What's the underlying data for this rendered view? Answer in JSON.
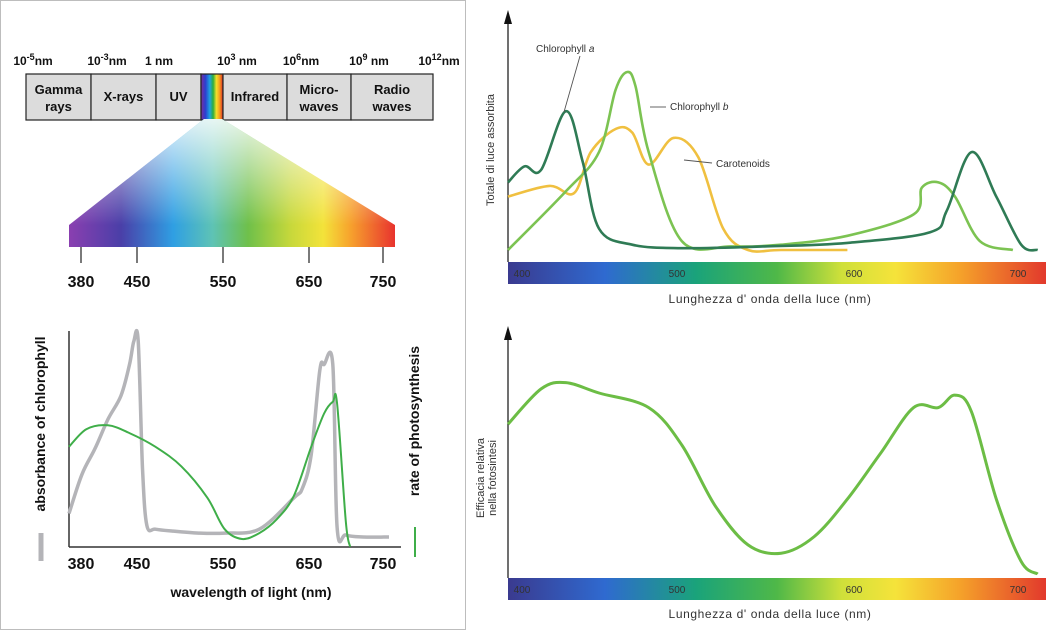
{
  "spectrum": {
    "scale_labels": [
      {
        "base": "10",
        "exp": "-5",
        "unit": "nm"
      },
      {
        "base": "10",
        "exp": "-3",
        "unit": "nm"
      },
      {
        "base": "1",
        "exp": "",
        "unit": " nm"
      },
      {
        "base": "10",
        "exp": "3",
        "unit": " nm"
      },
      {
        "base": "10",
        "exp": "6",
        "unit": "nm"
      },
      {
        "base": "10",
        "exp": "9",
        "unit": " nm"
      },
      {
        "base": "10",
        "exp": "12",
        "unit": "nm"
      }
    ],
    "bands": [
      {
        "lines": [
          "Gamma",
          "rays"
        ]
      },
      {
        "lines": [
          "X-rays"
        ]
      },
      {
        "lines": [
          "UV"
        ]
      },
      {
        "lines": []
      },
      {
        "lines": [
          "Infrared"
        ]
      },
      {
        "lines": [
          "Micro-",
          "waves"
        ]
      },
      {
        "lines": [
          "Radio",
          "waves"
        ]
      }
    ],
    "visible_ticks": [
      "380",
      "450",
      "550",
      "650",
      "750"
    ]
  },
  "chart_data": [
    {
      "type": "line",
      "xlabel": "wavelength of light (nm)",
      "ylabel": "absorbance of chlorophyll",
      "y2label": "rate of photosynthesis",
      "x_ticks": [
        "380",
        "450",
        "550",
        "650",
        "750"
      ],
      "xlim": [
        380,
        750
      ],
      "colors": {
        "absorbance": "#b4b4b8",
        "rate": "#3fae49"
      },
      "series": [
        {
          "name": "absorbance of chlorophyll",
          "x": [
            380,
            395,
            410,
            425,
            440,
            450,
            455,
            460,
            465,
            470,
            480,
            500,
            530,
            560,
            600,
            640,
            650,
            660,
            670,
            675,
            685,
            690,
            700,
            720,
            750
          ],
          "y": [
            0.12,
            0.32,
            0.45,
            0.6,
            0.72,
            0.88,
            1.0,
            1.0,
            0.35,
            0.06,
            0.04,
            0.03,
            0.02,
            0.02,
            0.04,
            0.2,
            0.25,
            0.42,
            0.85,
            0.88,
            0.88,
            0.05,
            0.01,
            0.0,
            0.0
          ]
        },
        {
          "name": "rate of photosynthesis",
          "x": [
            380,
            400,
            425,
            450,
            480,
            510,
            540,
            560,
            580,
            600,
            620,
            640,
            660,
            675,
            685,
            690,
            700,
            705
          ],
          "y": [
            0.46,
            0.55,
            0.57,
            0.53,
            0.46,
            0.36,
            0.2,
            0.04,
            -0.01,
            0.02,
            0.09,
            0.21,
            0.46,
            0.63,
            0.69,
            0.68,
            0.08,
            -0.05
          ]
        }
      ]
    },
    {
      "type": "line",
      "xlabel": "Lunghezza d' onda della luce (nm)",
      "ylabel": "Totale di luce assorbita",
      "x_ticks": [
        "400",
        "500",
        "600",
        "700"
      ],
      "xlim": [
        395,
        720
      ],
      "colors": {
        "Chlorophyll a": "#2f7b55",
        "Chlorophyll b": "#7cc352",
        "Carotenoids": "#f0c040"
      },
      "series": [
        {
          "name": "Chlorophyll a",
          "label_pre": "Chlorophyll ",
          "label_it": "a",
          "x": [
            395,
            405,
            415,
            430,
            440,
            450,
            470,
            500,
            550,
            600,
            650,
            660,
            675,
            690,
            705,
            715
          ],
          "y": [
            0.38,
            0.47,
            0.45,
            0.78,
            0.5,
            0.12,
            0.03,
            0.01,
            0.02,
            0.04,
            0.1,
            0.22,
            0.55,
            0.3,
            0.03,
            0.0
          ]
        },
        {
          "name": "Chlorophyll b",
          "label_pre": "Chlorophyll ",
          "label_it": "b",
          "x": [
            395,
            430,
            450,
            460,
            467,
            472,
            480,
            500,
            530,
            560,
            600,
            640,
            645,
            655,
            665,
            680,
            700
          ],
          "y": [
            0.0,
            0.33,
            0.55,
            0.9,
            1.0,
            0.92,
            0.55,
            0.05,
            0.02,
            0.03,
            0.08,
            0.2,
            0.35,
            0.38,
            0.3,
            0.05,
            0.0
          ]
        },
        {
          "name": "Carotenoids",
          "label_pre": "Carotenoids",
          "label_it": "",
          "x": [
            395,
            420,
            435,
            445,
            460,
            470,
            480,
            495,
            510,
            525,
            540,
            560,
            600
          ],
          "y": [
            0.3,
            0.36,
            0.32,
            0.55,
            0.68,
            0.66,
            0.48,
            0.63,
            0.52,
            0.12,
            0.0,
            0.0,
            0.0
          ]
        }
      ]
    },
    {
      "type": "line",
      "xlabel": "Lunghezza d' onda della luce (nm)",
      "ylabel": [
        "Efficacia relativa",
        "nella fotosintesi"
      ],
      "x_ticks": [
        "400",
        "500",
        "600",
        "700"
      ],
      "xlim": [
        395,
        720
      ],
      "colors": {
        "line": "#6cbd45"
      },
      "series": [
        {
          "name": "efficacy",
          "x": [
            395,
            415,
            430,
            450,
            480,
            500,
            520,
            540,
            560,
            580,
            600,
            620,
            640,
            655,
            665,
            675,
            690,
            705,
            715
          ],
          "y": [
            0.72,
            0.89,
            0.92,
            0.87,
            0.8,
            0.62,
            0.33,
            0.14,
            0.1,
            0.18,
            0.36,
            0.58,
            0.8,
            0.8,
            0.86,
            0.78,
            0.36,
            0.06,
            0.0
          ]
        }
      ]
    }
  ]
}
